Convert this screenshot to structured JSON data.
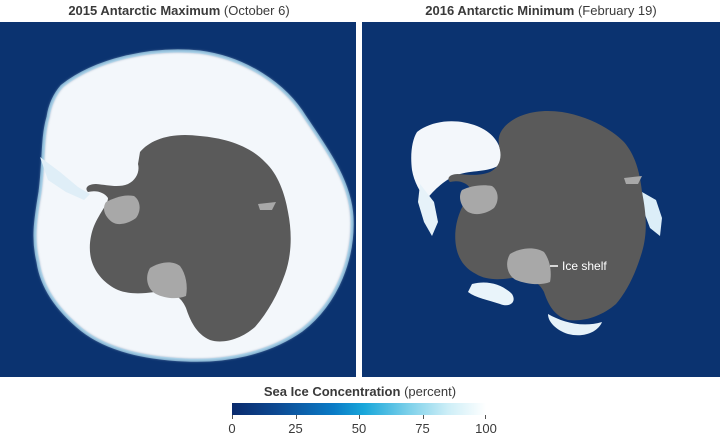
{
  "left_map": {
    "title_bold": "2015 Antarctic Maximum",
    "title_date": "(October 6)"
  },
  "right_map": {
    "title_bold": "2016 Antarctic Minimum",
    "title_date": "(February 19)",
    "annotation": "Ice shelf"
  },
  "legend": {
    "title_bold": "Sea Ice Concentration",
    "title_unit": "(percent)",
    "ticks": [
      "0",
      "25",
      "50",
      "75",
      "100"
    ],
    "range": [
      0,
      100
    ]
  },
  "colors": {
    "ocean": "#0b3370",
    "land": "#5a5a5a",
    "ice_shelf": "#a8a8a8",
    "sea_ice": "#f4f8fb",
    "text": "#3a3a3a"
  }
}
